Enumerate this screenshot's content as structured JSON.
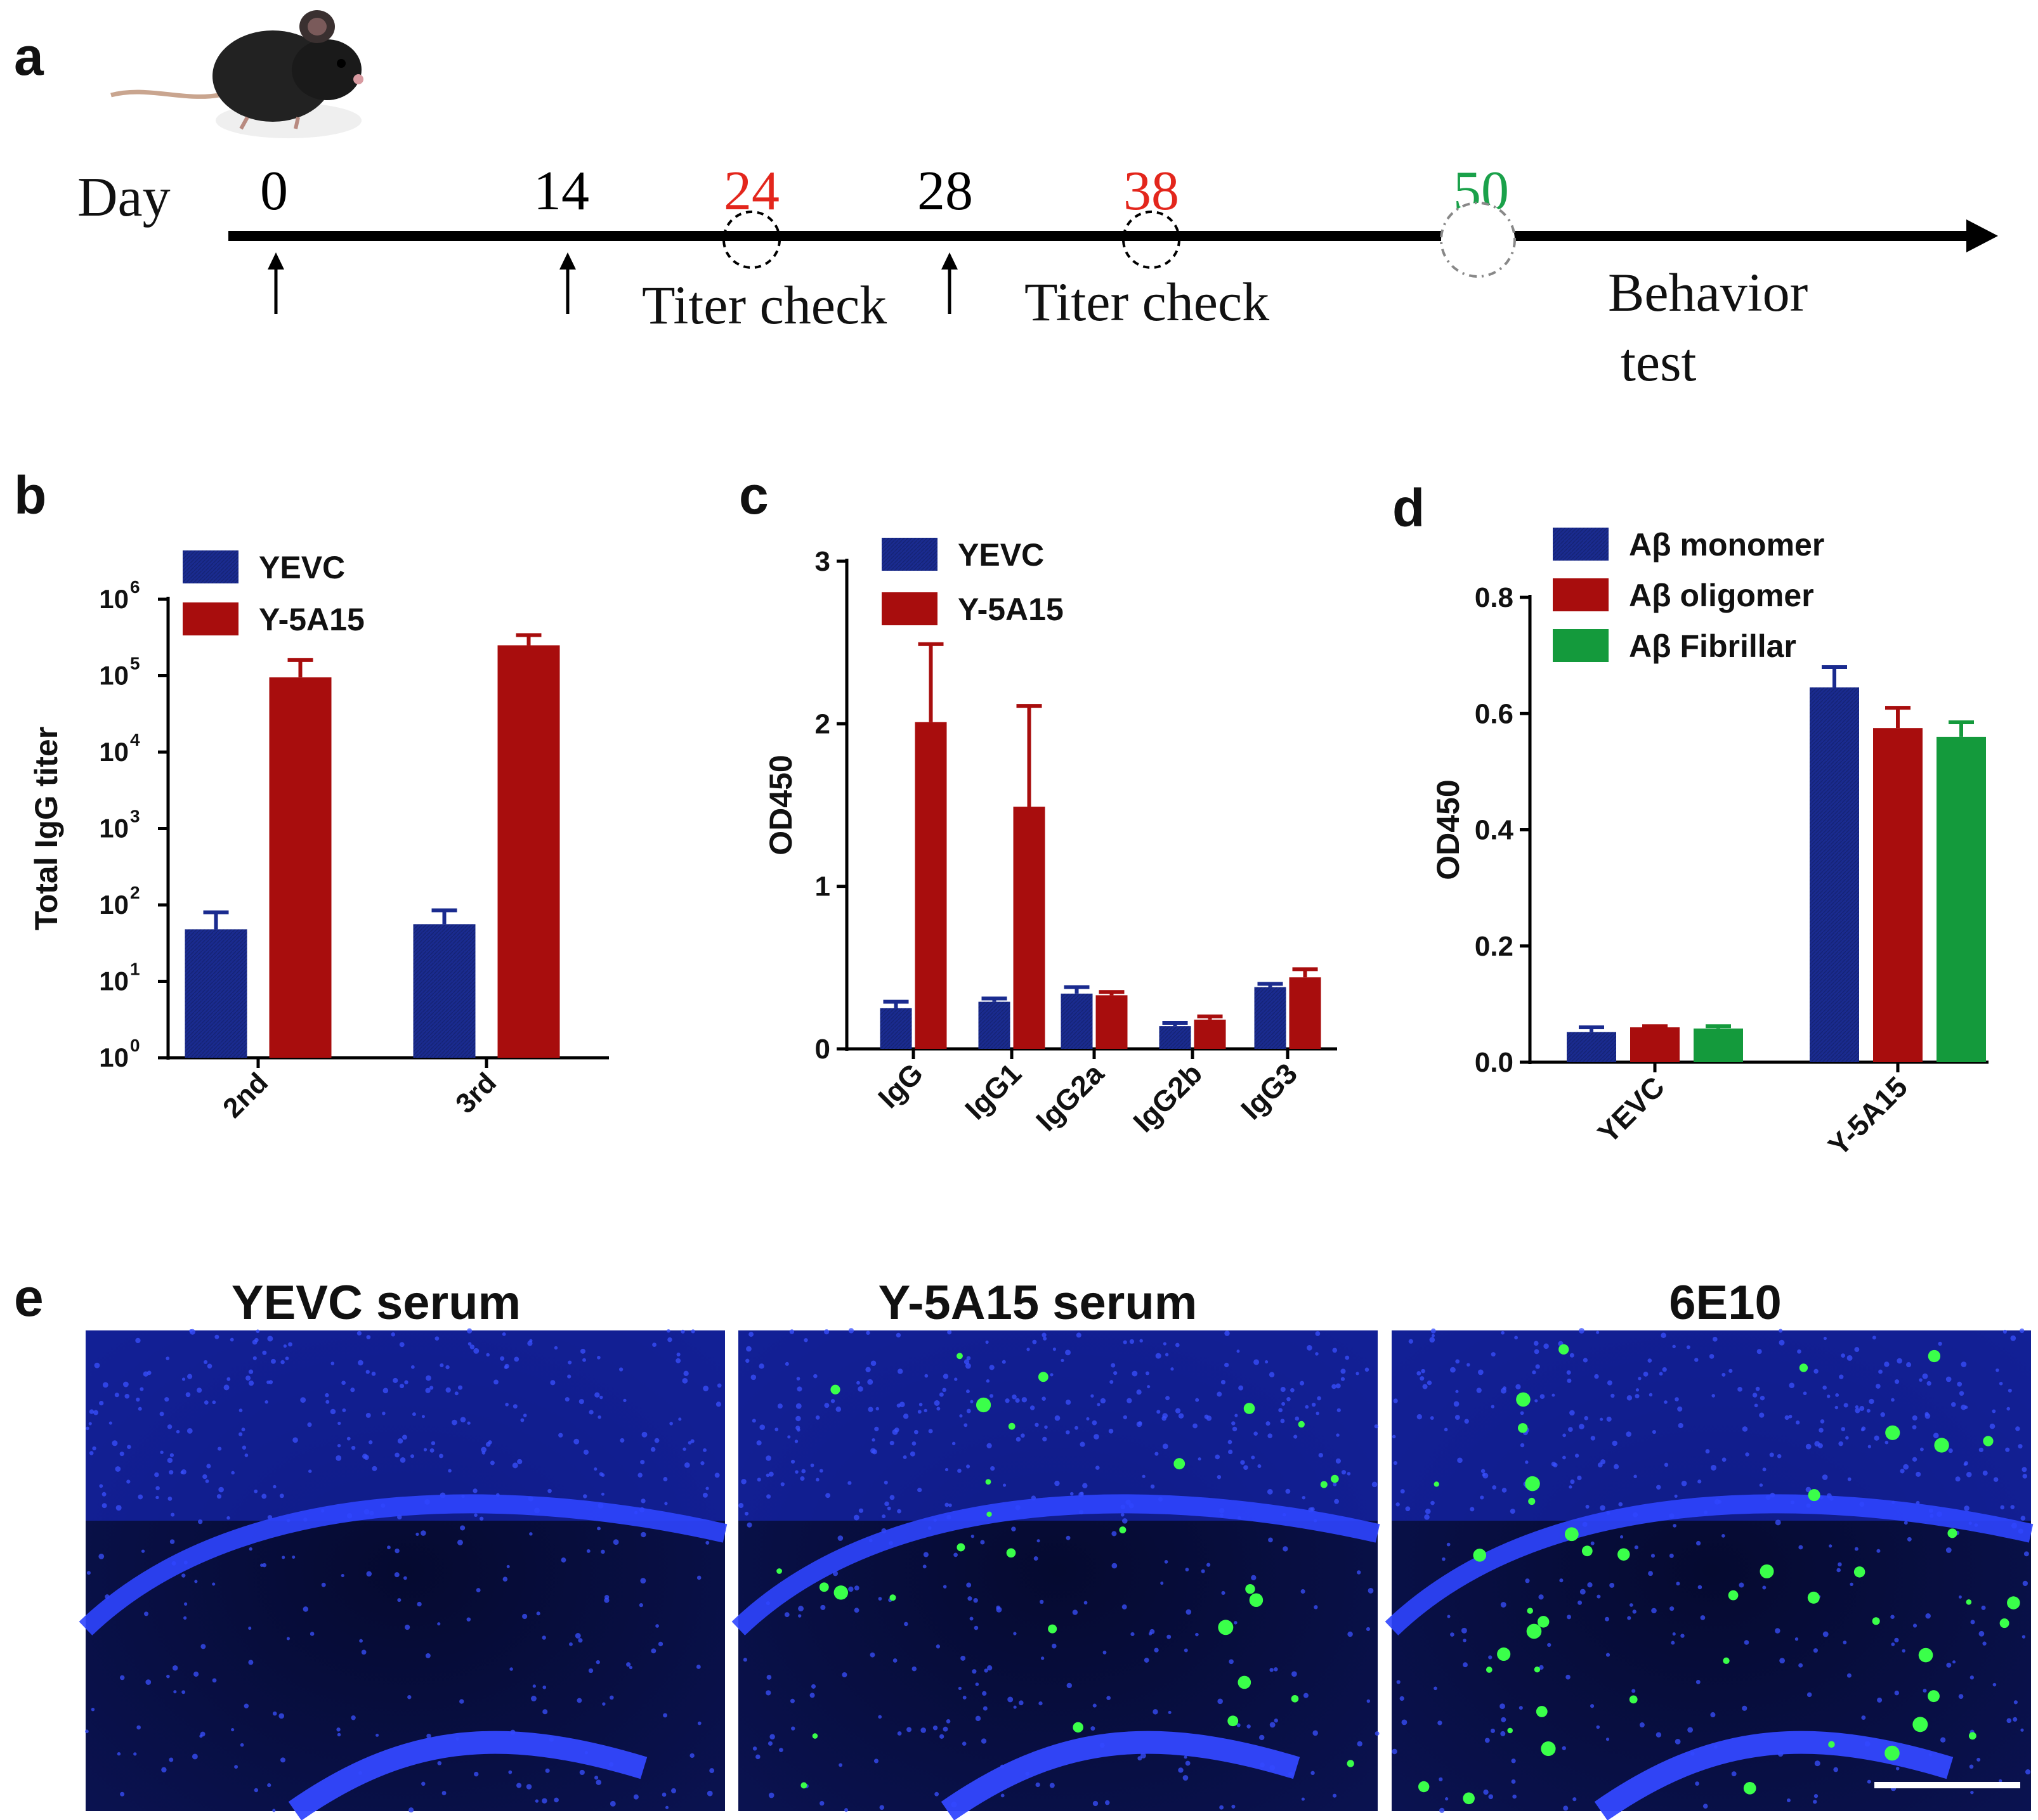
{
  "panels": {
    "a": "a",
    "b": "b",
    "c": "c",
    "d": "d",
    "e": "e"
  },
  "timeline": {
    "day_label": "Day",
    "days": [
      {
        "label": "0",
        "value": 0,
        "color": "#000000"
      },
      {
        "label": "14",
        "value": 14,
        "color": "#000000"
      },
      {
        "label": "24",
        "value": 24,
        "color": "#e3261c"
      },
      {
        "label": "28",
        "value": 28,
        "color": "#000000"
      },
      {
        "label": "38",
        "value": 38,
        "color": "#e3261c"
      },
      {
        "label": "50",
        "value": 50,
        "color": "#1aa14a"
      }
    ],
    "titer_check_1": "Titer check",
    "titer_check_2": "Titer check",
    "behavior_line1": "Behavior",
    "behavior_line2": "test"
  },
  "colors": {
    "navy": "#1a2b8f",
    "red": "#a80d0d",
    "green": "#149a3c",
    "blue_stain": "#2a3dff",
    "green_stain": "#3aff4a"
  },
  "chart_data": [
    {
      "id": "b",
      "type": "bar",
      "scale": "log10",
      "ylabel": "Total IgG titer",
      "yticks": [
        "10",
        "10",
        "10",
        "10",
        "10",
        "10",
        "10"
      ],
      "ytick_exponents": [
        "0",
        "1",
        "2",
        "3",
        "4",
        "5",
        "6"
      ],
      "ylim": [
        1,
        1000000
      ],
      "categories": [
        "2nd",
        "3rd"
      ],
      "series": [
        {
          "name": "YEVC",
          "values": [
            48,
            56
          ],
          "errors": [
            80,
            85
          ],
          "color": "#1a2b8f"
        },
        {
          "name": "Y-5A15",
          "values": [
            95000,
            250000
          ],
          "errors": [
            160000,
            340000
          ],
          "color": "#a80d0d"
        }
      ]
    },
    {
      "id": "c",
      "type": "bar",
      "ylabel": "OD450",
      "yticks": [
        "0",
        "1",
        "2",
        "3"
      ],
      "ylim": [
        0,
        3
      ],
      "categories": [
        "IgG",
        "IgG1",
        "IgG2a",
        "IgG2b",
        "IgG3"
      ],
      "series": [
        {
          "name": "YEVC",
          "values": [
            0.25,
            0.29,
            0.34,
            0.14,
            0.38
          ],
          "errors": [
            0.29,
            0.31,
            0.38,
            0.16,
            0.4
          ],
          "color": "#1a2b8f"
        },
        {
          "name": "Y-5A15",
          "values": [
            2.01,
            1.49,
            0.33,
            0.18,
            0.44
          ],
          "errors": [
            2.49,
            2.11,
            0.35,
            0.2,
            0.49
          ],
          "color": "#a80d0d"
        }
      ]
    },
    {
      "id": "d",
      "type": "bar",
      "ylabel": "OD450",
      "yticks": [
        "0.0",
        "0.2",
        "0.4",
        "0.6",
        "0.8"
      ],
      "ylim": [
        0,
        0.8
      ],
      "categories": [
        "YEVC",
        "Y-5A15"
      ],
      "series": [
        {
          "name": "Aβ  monomer",
          "values": [
            0.052,
            0.645
          ],
          "errors": [
            0.06,
            0.68
          ],
          "color": "#1a2b8f"
        },
        {
          "name": "Aβ  oligomer",
          "values": [
            0.06,
            0.575
          ],
          "errors": [
            0.062,
            0.61
          ],
          "color": "#a80d0d"
        },
        {
          "name": "Aβ  Fibrillar",
          "values": [
            0.058,
            0.56
          ],
          "errors": [
            0.062,
            0.585
          ],
          "color": "#149a3c"
        }
      ]
    }
  ],
  "micrographs": [
    {
      "title": "YEVC serum",
      "green_dots": 0
    },
    {
      "title": "Y-5A15 serum",
      "green_dots": 30
    },
    {
      "title": "6E10",
      "green_dots": 45
    }
  ]
}
